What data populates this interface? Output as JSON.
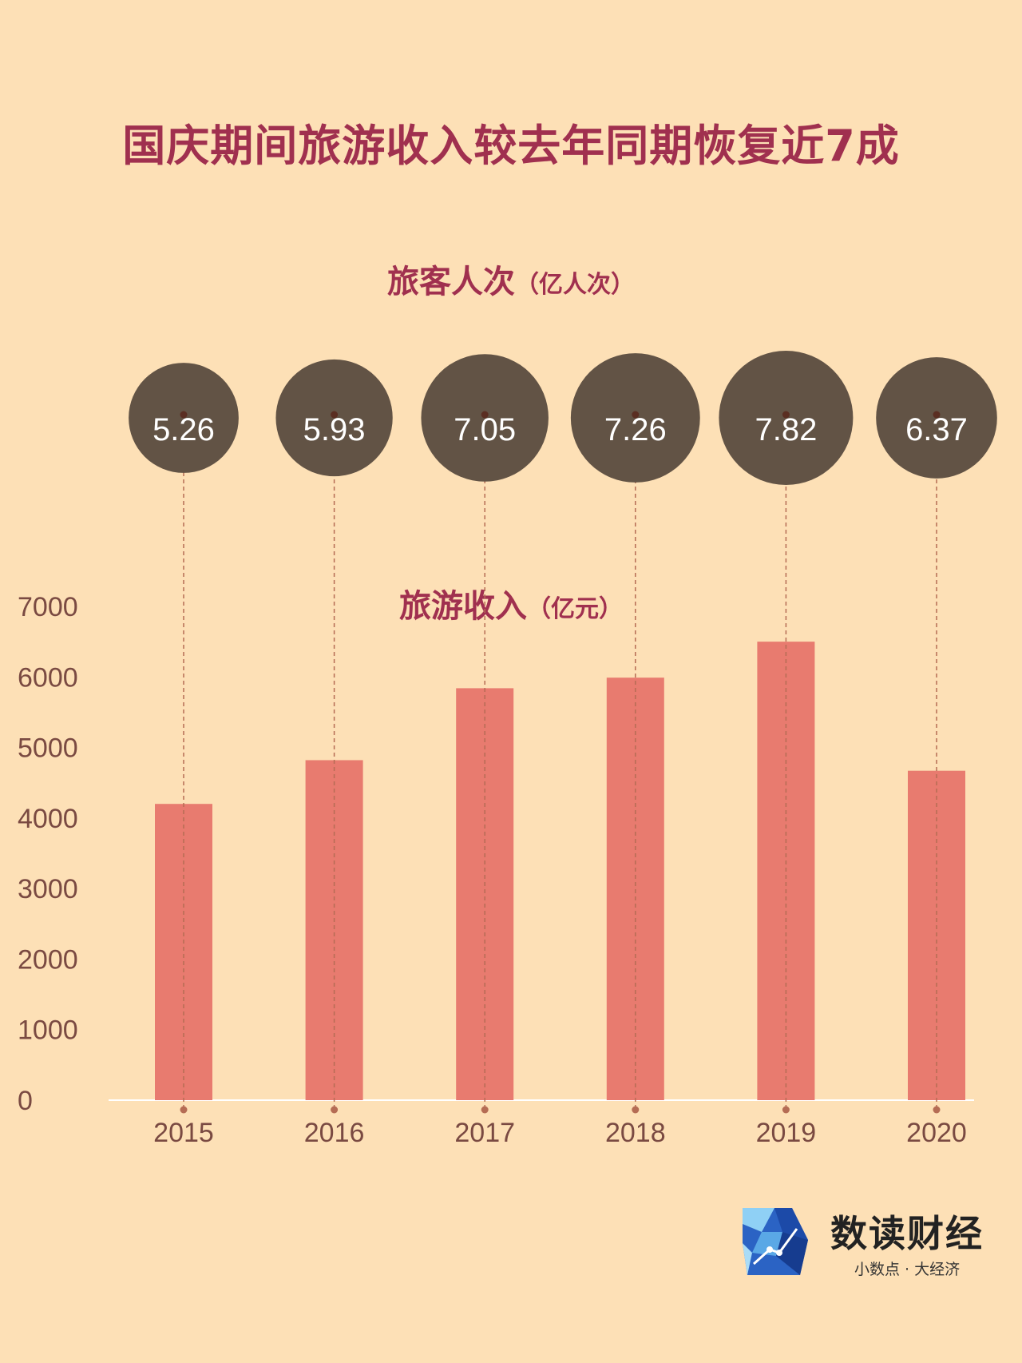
{
  "title": "国庆期间旅游收入较去年同期恢复近7成",
  "logo": {
    "name": "数读财经",
    "slogan": "小数点 · 大经济"
  },
  "colors": {
    "background": "#fde0b6",
    "accent": "#a0304f",
    "bar": "#e87b6f",
    "bubble": "#625345",
    "connector": "#b56c54"
  },
  "chart_data": [
    {
      "type": "bubble",
      "title": "旅客人次",
      "unit": "（亿人次）",
      "categories": [
        "2015",
        "2016",
        "2017",
        "2018",
        "2019",
        "2020"
      ],
      "values": [
        5.26,
        5.93,
        7.05,
        7.26,
        7.82,
        6.37
      ],
      "labels": [
        "5.26",
        "5.93",
        "7.05",
        "7.26",
        "7.82",
        "6.37"
      ]
    },
    {
      "type": "bar",
      "title": "旅游收入",
      "unit": "（亿元）",
      "categories": [
        "2015",
        "2016",
        "2017",
        "2018",
        "2019",
        "2020"
      ],
      "values": [
        4200,
        4820,
        5840,
        5990,
        6500,
        4670
      ],
      "ylim": [
        0,
        7000
      ],
      "yticks": [
        "0",
        "1000",
        "2000",
        "3000",
        "4000",
        "5000",
        "6000",
        "7000"
      ],
      "grid": false
    }
  ]
}
